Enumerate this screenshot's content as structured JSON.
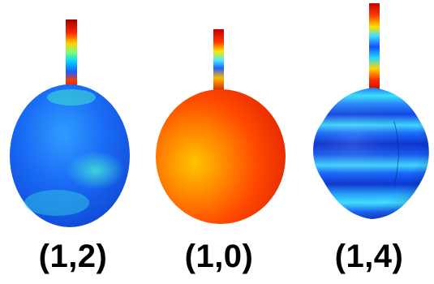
{
  "panels": [
    {
      "label": "(1,2)",
      "colormap": "jet",
      "dominant_color": "blue"
    },
    {
      "label": "(1,0)",
      "colormap": "jet",
      "dominant_color": "red-orange"
    },
    {
      "label": "(1,4)",
      "colormap": "jet",
      "dominant_color": "blue with cyan bands"
    }
  ],
  "background": "#ffffff"
}
